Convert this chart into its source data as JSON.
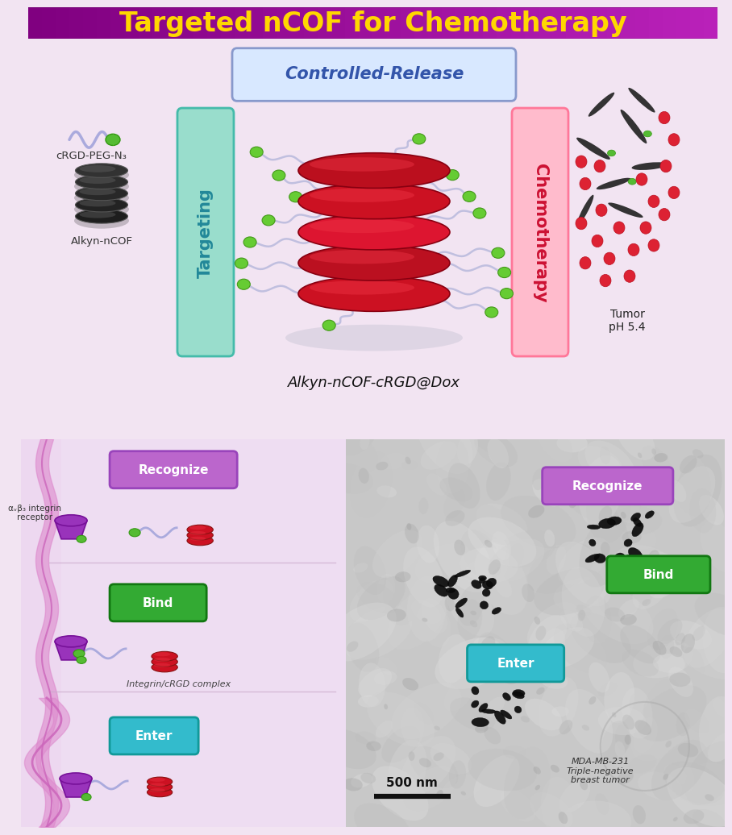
{
  "title": "Targeted nCOF for Chemotherapy",
  "title_color": "#FFD700",
  "main_bg_color": "#F2E4F2",
  "controlled_release_text": "Controlled-Release",
  "targeting_text": "Targeting",
  "chemotherapy_text": "Chemotherapy",
  "alkyn_ncof_label": "Alkyn-nCOF",
  "crgd_label": "cRGD-PEG-N₃",
  "complex_label": "Alkyn-nCOF-cRGD@Dox",
  "tumor_label": "Tumor\npH 5.4",
  "recognize_text": "Recognize",
  "bind_text": "Bind",
  "enter_text": "Enter",
  "integrin_label": "αᵥβ₃ integrin\nreceptor",
  "complex_label2": "Integrin/cRGD complex",
  "scale_bar_text": "500 nm",
  "tem_label": "MDA-MB-231\nTriple-negative\nbreast tumor"
}
